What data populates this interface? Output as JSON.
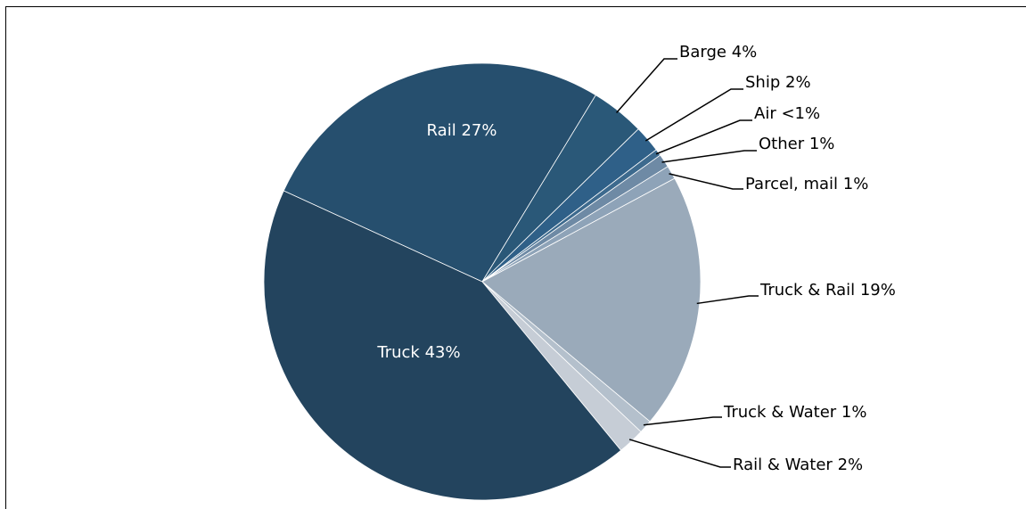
{
  "chart_data": {
    "type": "pie",
    "categories": [
      "Rail",
      "Barge",
      "Ship",
      "Air",
      "Other",
      "Parcel, mail",
      "Truck & Rail",
      "Truck & Water",
      "Rail & Water",
      "Truck"
    ],
    "values": [
      27,
      4,
      2,
      0.5,
      1,
      1,
      19,
      1,
      2,
      43
    ],
    "value_labels": [
      "27%",
      "4%",
      "2%",
      "<1%",
      "1%",
      "1%",
      "19%",
      "1%",
      "2%",
      "43%"
    ],
    "colors": [
      "#264f6e",
      "#2a5878",
      "#2f6088",
      "#3d6a8e",
      "#6e8aa5",
      "#8ea3b8",
      "#9aaaba",
      "#b4c0cc",
      "#c6cdd6",
      "#23445e"
    ]
  }
}
